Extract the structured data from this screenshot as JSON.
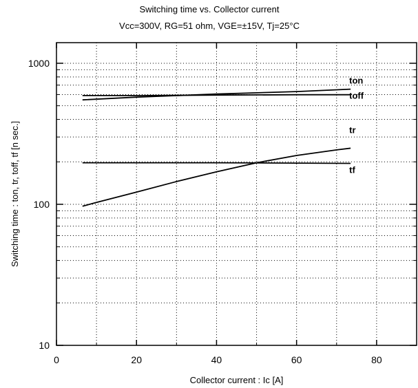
{
  "chart_data": {
    "type": "line",
    "title": "Switching time  vs. Collector current",
    "subtitle": "Vcc=300V, RG=51 ohm, VGE=±15V, Tj=25°C",
    "xlabel": "Collector  current  :  Ic [A]",
    "ylabel": "Switching  time  :  ton,  tr,  toff,  tf  [n sec.]",
    "xlim": [
      0,
      90
    ],
    "ylim": [
      10,
      1400
    ],
    "yscale": "log",
    "x_ticks": [
      0,
      20,
      40,
      60,
      80
    ],
    "x_tick_labels": [
      "0",
      "20",
      "40",
      "60",
      "80"
    ],
    "y_ticks": [
      10,
      100,
      1000
    ],
    "y_tick_labels": [
      "10",
      "100",
      "1000"
    ],
    "grid": true,
    "series": [
      {
        "name": "ton",
        "x": [
          6.5,
          20,
          40,
          60,
          73.5
        ],
        "y": [
          550,
          575,
          605,
          630,
          655
        ]
      },
      {
        "name": "toff",
        "x": [
          6.5,
          20,
          40,
          60,
          73.5
        ],
        "y": [
          590,
          590,
          595,
          598,
          598
        ]
      },
      {
        "name": "tr",
        "x": [
          6.5,
          10,
          20,
          30,
          40,
          50,
          60,
          70,
          73.5
        ],
        "y": [
          97,
          103,
          122,
          145,
          170,
          197,
          222,
          243,
          250
        ]
      },
      {
        "name": "tf",
        "x": [
          6.5,
          20,
          40,
          60,
          73.5
        ],
        "y": [
          197,
          197,
          197,
          196,
          195
        ]
      }
    ]
  }
}
